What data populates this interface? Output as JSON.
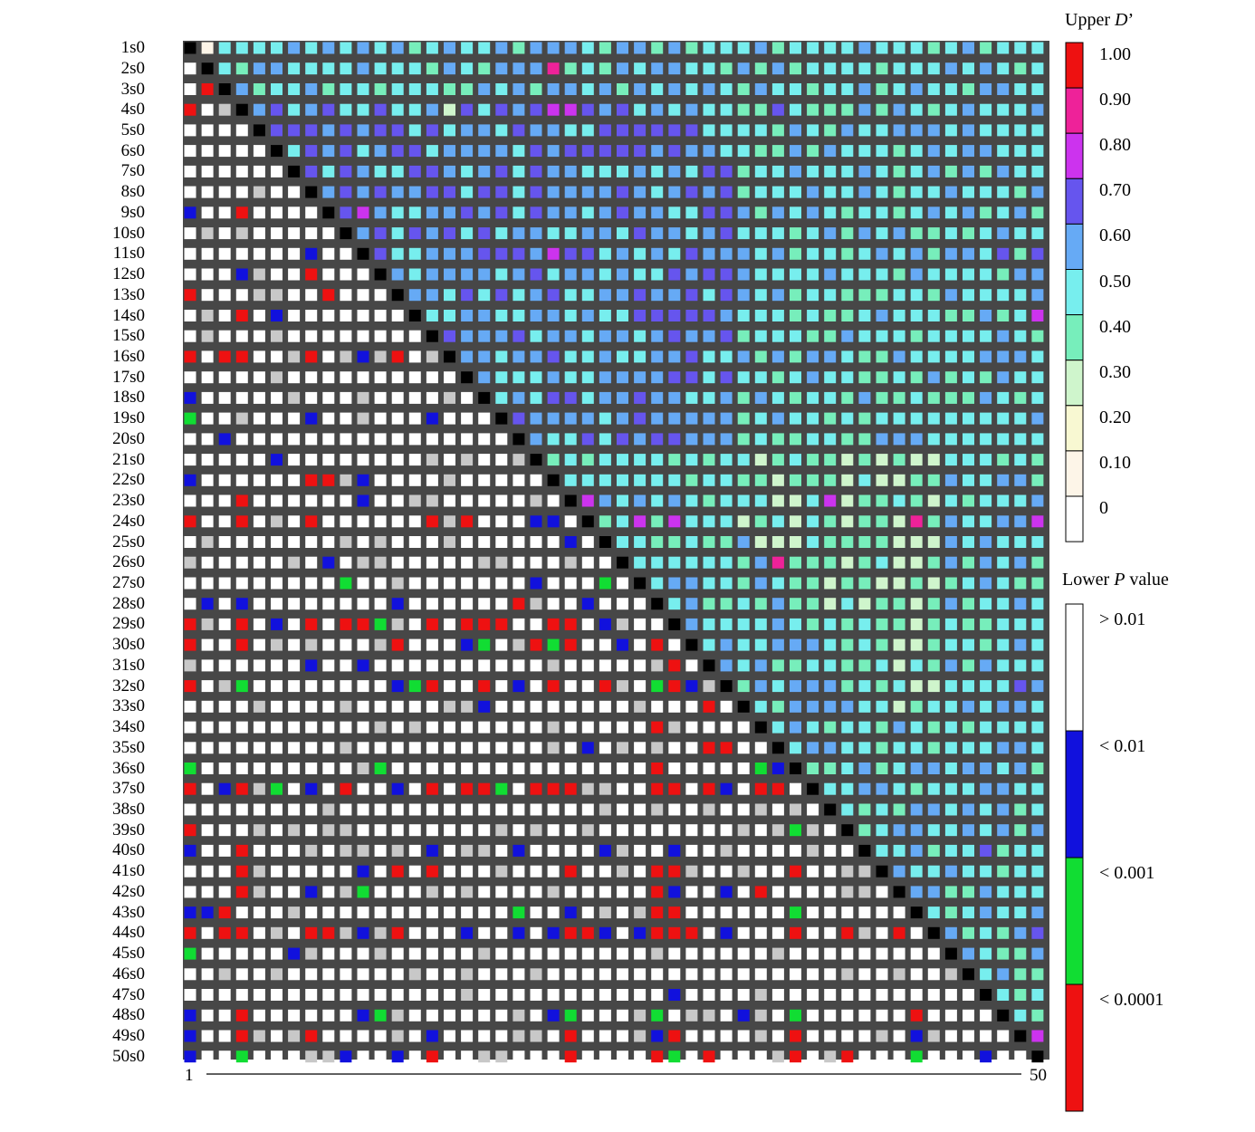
{
  "chart_data": {
    "type": "heatmap",
    "description_matrix": "Pairwise linkage disequilibrium matrix for 50 sites. Upper triangle colored by D' bins; lower triangle colored by P-value bins.",
    "row_labels": [
      "1s0",
      "2s0",
      "3s0",
      "4s0",
      "5s0",
      "6s0",
      "7s0",
      "8s0",
      "9s0",
      "10s0",
      "11s0",
      "12s0",
      "13s0",
      "14s0",
      "15s0",
      "16s0",
      "17s0",
      "18s0",
      "19s0",
      "20s0",
      "21s0",
      "22s0",
      "23s0",
      "24s0",
      "25s0",
      "26s0",
      "27s0",
      "28s0",
      "29s0",
      "30s0",
      "31s0",
      "32s0",
      "33s0",
      "34s0",
      "35s0",
      "36s0",
      "37s0",
      "38s0",
      "39s0",
      "40s0",
      "41s0",
      "42s0",
      "43s0",
      "44s0",
      "45s0",
      "46s0",
      "47s0",
      "48s0",
      "49s0",
      "50s0"
    ],
    "x_axis": {
      "start_label": "1",
      "end_label": "50"
    },
    "upper_legend": {
      "title_prefix": "Upper ",
      "title_italic": "D",
      "title_suffix": "’",
      "ticks": [
        "1.00",
        "0.90",
        "0.80",
        "0.70",
        "0.60",
        "0.50",
        "0.40",
        "0.30",
        "0.20",
        "0.10",
        "0"
      ],
      "colors": [
        "#ee1111",
        "#ee2299",
        "#cc33ee",
        "#6655ee",
        "#66aaf5",
        "#77eeee",
        "#77eebb",
        "#cff5cc",
        "#f8f8d2",
        "#fdf5e8",
        "#ffffff"
      ]
    },
    "lower_legend": {
      "title_prefix": "Lower ",
      "title_italic": "P",
      "title_suffix": " value",
      "ticks": [
        "> 0.01",
        "< 0.01",
        "< 0.001",
        "< 0.0001"
      ],
      "colors": [
        "#ffffff",
        "#1111dd",
        "#11dd33",
        "#ee1111"
      ]
    },
    "diagonal_color": "#000000",
    "grid_background": "#474747",
    "lower_special": [
      [
        "3s0",
        2,
        "r"
      ],
      [
        "4s0",
        1,
        "r"
      ],
      [
        "9s0",
        1,
        "b"
      ],
      [
        "9s0",
        4,
        "r"
      ],
      [
        "11s0",
        8,
        "b"
      ],
      [
        "12s0",
        4,
        "b"
      ],
      [
        "12s0",
        8,
        "r"
      ],
      [
        "13s0",
        1,
        "r"
      ],
      [
        "13s0",
        9,
        "r"
      ],
      [
        "14s0",
        4,
        "r"
      ],
      [
        "14s0",
        6,
        "b"
      ],
      [
        "16s0",
        1,
        "r"
      ],
      [
        "16s0",
        3,
        "r"
      ],
      [
        "16s0",
        4,
        "r"
      ],
      [
        "16s0",
        8,
        "r"
      ],
      [
        "16s0",
        11,
        "b"
      ],
      [
        "16s0",
        13,
        "r"
      ],
      [
        "18s0",
        1,
        "b"
      ],
      [
        "19s0",
        1,
        "g"
      ],
      [
        "19s0",
        8,
        "b"
      ],
      [
        "19s0",
        15,
        "b"
      ],
      [
        "20s0",
        3,
        "b"
      ],
      [
        "21s0",
        6,
        "b"
      ],
      [
        "22s0",
        1,
        "b"
      ],
      [
        "22s0",
        8,
        "r"
      ],
      [
        "22s0",
        9,
        "r"
      ],
      [
        "22s0",
        11,
        "b"
      ],
      [
        "23s0",
        4,
        "r"
      ],
      [
        "23s0",
        11,
        "b"
      ],
      [
        "24s0",
        1,
        "r"
      ],
      [
        "24s0",
        4,
        "r"
      ],
      [
        "24s0",
        8,
        "r"
      ],
      [
        "24s0",
        15,
        "r"
      ],
      [
        "24s0",
        17,
        "r"
      ],
      [
        "24s0",
        21,
        "b"
      ],
      [
        "24s0",
        22,
        "b"
      ],
      [
        "25s0",
        23,
        "b"
      ],
      [
        "26s0",
        9,
        "b"
      ],
      [
        "27s0",
        10,
        "g"
      ],
      [
        "27s0",
        21,
        "b"
      ],
      [
        "27s0",
        25,
        "g"
      ],
      [
        "28s0",
        2,
        "b"
      ],
      [
        "28s0",
        4,
        "b"
      ],
      [
        "28s0",
        13,
        "b"
      ],
      [
        "28s0",
        20,
        "r"
      ],
      [
        "28s0",
        24,
        "b"
      ],
      [
        "29s0",
        1,
        "r"
      ],
      [
        "29s0",
        4,
        "r"
      ],
      [
        "29s0",
        6,
        "b"
      ],
      [
        "29s0",
        8,
        "r"
      ],
      [
        "29s0",
        10,
        "r"
      ],
      [
        "29s0",
        11,
        "r"
      ],
      [
        "29s0",
        12,
        "g"
      ],
      [
        "29s0",
        15,
        "r"
      ],
      [
        "29s0",
        17,
        "r"
      ],
      [
        "29s0",
        18,
        "r"
      ],
      [
        "29s0",
        19,
        "r"
      ],
      [
        "29s0",
        22,
        "r"
      ],
      [
        "29s0",
        23,
        "r"
      ],
      [
        "29s0",
        25,
        "b"
      ],
      [
        "30s0",
        1,
        "r"
      ],
      [
        "30s0",
        4,
        "r"
      ],
      [
        "30s0",
        13,
        "r"
      ],
      [
        "30s0",
        17,
        "b"
      ],
      [
        "30s0",
        18,
        "g"
      ],
      [
        "30s0",
        21,
        "r"
      ],
      [
        "30s0",
        22,
        "g"
      ],
      [
        "30s0",
        23,
        "r"
      ],
      [
        "30s0",
        26,
        "b"
      ],
      [
        "30s0",
        28,
        "r"
      ],
      [
        "31s0",
        8,
        "b"
      ],
      [
        "31s0",
        11,
        "b"
      ],
      [
        "31s0",
        29,
        "r"
      ],
      [
        "32s0",
        1,
        "r"
      ],
      [
        "32s0",
        4,
        "g"
      ],
      [
        "32s0",
        13,
        "b"
      ],
      [
        "32s0",
        14,
        "g"
      ],
      [
        "32s0",
        15,
        "r"
      ],
      [
        "32s0",
        18,
        "r"
      ],
      [
        "32s0",
        20,
        "b"
      ],
      [
        "32s0",
        22,
        "r"
      ],
      [
        "32s0",
        25,
        "r"
      ],
      [
        "32s0",
        28,
        "g"
      ],
      [
        "32s0",
        29,
        "r"
      ],
      [
        "32s0",
        30,
        "b"
      ],
      [
        "33s0",
        18,
        "b"
      ],
      [
        "33s0",
        31,
        "r"
      ],
      [
        "34s0",
        28,
        "r"
      ],
      [
        "35s0",
        24,
        "b"
      ],
      [
        "35s0",
        31,
        "r"
      ],
      [
        "35s0",
        32,
        "r"
      ],
      [
        "36s0",
        1,
        "g"
      ],
      [
        "36s0",
        12,
        "g"
      ],
      [
        "36s0",
        28,
        "r"
      ],
      [
        "36s0",
        34,
        "g"
      ],
      [
        "36s0",
        35,
        "b"
      ],
      [
        "37s0",
        1,
        "r"
      ],
      [
        "37s0",
        3,
        "b"
      ],
      [
        "37s0",
        4,
        "r"
      ],
      [
        "37s0",
        6,
        "g"
      ],
      [
        "37s0",
        8,
        "b"
      ],
      [
        "37s0",
        10,
        "r"
      ],
      [
        "37s0",
        13,
        "b"
      ],
      [
        "37s0",
        15,
        "r"
      ],
      [
        "37s0",
        17,
        "r"
      ],
      [
        "37s0",
        18,
        "r"
      ],
      [
        "37s0",
        19,
        "g"
      ],
      [
        "37s0",
        21,
        "r"
      ],
      [
        "37s0",
        22,
        "r"
      ],
      [
        "37s0",
        23,
        "r"
      ],
      [
        "37s0",
        28,
        "r"
      ],
      [
        "37s0",
        29,
        "r"
      ],
      [
        "37s0",
        31,
        "r"
      ],
      [
        "37s0",
        32,
        "b"
      ],
      [
        "37s0",
        34,
        "r"
      ],
      [
        "37s0",
        35,
        "r"
      ],
      [
        "39s0",
        1,
        "r"
      ],
      [
        "39s0",
        36,
        "g"
      ],
      [
        "40s0",
        1,
        "b"
      ],
      [
        "40s0",
        4,
        "r"
      ],
      [
        "40s0",
        15,
        "b"
      ],
      [
        "40s0",
        20,
        "b"
      ],
      [
        "40s0",
        25,
        "b"
      ],
      [
        "40s0",
        29,
        "b"
      ],
      [
        "41s0",
        4,
        "r"
      ],
      [
        "41s0",
        11,
        "b"
      ],
      [
        "41s0",
        13,
        "r"
      ],
      [
        "41s0",
        15,
        "r"
      ],
      [
        "41s0",
        23,
        "r"
      ],
      [
        "41s0",
        28,
        "r"
      ],
      [
        "41s0",
        29,
        "r"
      ],
      [
        "41s0",
        36,
        "r"
      ],
      [
        "42s0",
        4,
        "r"
      ],
      [
        "42s0",
        8,
        "b"
      ],
      [
        "42s0",
        11,
        "g"
      ],
      [
        "42s0",
        28,
        "r"
      ],
      [
        "42s0",
        29,
        "b"
      ],
      [
        "42s0",
        32,
        "b"
      ],
      [
        "42s0",
        34,
        "r"
      ],
      [
        "43s0",
        1,
        "b"
      ],
      [
        "43s0",
        2,
        "b"
      ],
      [
        "43s0",
        3,
        "r"
      ],
      [
        "43s0",
        20,
        "g"
      ],
      [
        "43s0",
        23,
        "b"
      ],
      [
        "43s0",
        28,
        "r"
      ],
      [
        "43s0",
        29,
        "r"
      ],
      [
        "43s0",
        36,
        "g"
      ],
      [
        "44s0",
        1,
        "r"
      ],
      [
        "44s0",
        3,
        "r"
      ],
      [
        "44s0",
        4,
        "r"
      ],
      [
        "44s0",
        8,
        "r"
      ],
      [
        "44s0",
        9,
        "r"
      ],
      [
        "44s0",
        11,
        "b"
      ],
      [
        "44s0",
        13,
        "r"
      ],
      [
        "44s0",
        17,
        "b"
      ],
      [
        "44s0",
        20,
        "b"
      ],
      [
        "44s0",
        22,
        "b"
      ],
      [
        "44s0",
        23,
        "r"
      ],
      [
        "44s0",
        24,
        "r"
      ],
      [
        "44s0",
        25,
        "b"
      ],
      [
        "44s0",
        27,
        "b"
      ],
      [
        "44s0",
        28,
        "r"
      ],
      [
        "44s0",
        29,
        "r"
      ],
      [
        "44s0",
        30,
        "r"
      ],
      [
        "44s0",
        32,
        "b"
      ],
      [
        "44s0",
        36,
        "r"
      ],
      [
        "44s0",
        39,
        "r"
      ],
      [
        "44s0",
        42,
        "r"
      ],
      [
        "45s0",
        1,
        "g"
      ],
      [
        "45s0",
        7,
        "b"
      ],
      [
        "47s0",
        29,
        "b"
      ],
      [
        "48s0",
        1,
        "b"
      ],
      [
        "48s0",
        4,
        "r"
      ],
      [
        "48s0",
        11,
        "b"
      ],
      [
        "48s0",
        12,
        "g"
      ],
      [
        "48s0",
        22,
        "b"
      ],
      [
        "48s0",
        23,
        "g"
      ],
      [
        "48s0",
        28,
        "g"
      ],
      [
        "48s0",
        33,
        "b"
      ],
      [
        "48s0",
        36,
        "g"
      ],
      [
        "48s0",
        43,
        "r"
      ],
      [
        "49s0",
        1,
        "b"
      ],
      [
        "49s0",
        4,
        "r"
      ],
      [
        "49s0",
        8,
        "r"
      ],
      [
        "49s0",
        15,
        "b"
      ],
      [
        "49s0",
        23,
        "r"
      ],
      [
        "49s0",
        28,
        "b"
      ],
      [
        "49s0",
        29,
        "r"
      ],
      [
        "49s0",
        36,
        "r"
      ],
      [
        "49s0",
        43,
        "b"
      ],
      [
        "50s0",
        1,
        "b"
      ],
      [
        "50s0",
        4,
        "g"
      ],
      [
        "50s0",
        10,
        "b"
      ],
      [
        "50s0",
        13,
        "b"
      ],
      [
        "50s0",
        15,
        "r"
      ],
      [
        "50s0",
        23,
        "r"
      ],
      [
        "50s0",
        28,
        "r"
      ],
      [
        "50s0",
        29,
        "g"
      ],
      [
        "50s0",
        31,
        "r"
      ],
      [
        "50s0",
        36,
        "r"
      ],
      [
        "50s0",
        39,
        "r"
      ],
      [
        "50s0",
        43,
        "g"
      ],
      [
        "50s0",
        47,
        "b"
      ]
    ],
    "upper_special": [
      [
        "1s0",
        2,
        "0.10"
      ],
      [
        "2s0",
        22,
        "0.90"
      ],
      [
        "4s0",
        16,
        "0.30"
      ],
      [
        "4s0",
        22,
        "0.80"
      ],
      [
        "4s0",
        23,
        "0.80"
      ],
      [
        "4s0",
        35,
        "0.70"
      ],
      [
        "4s0",
        50,
        "0.60"
      ],
      [
        "9s0",
        11,
        "0.80"
      ],
      [
        "11s0",
        22,
        "0.80"
      ],
      [
        "11s0",
        48,
        "0.70"
      ],
      [
        "11s0",
        50,
        "0.70"
      ],
      [
        "14s0",
        50,
        "0.80"
      ],
      [
        "23s0",
        24,
        "0.80"
      ],
      [
        "23s0",
        38,
        "0.80"
      ],
      [
        "24s0",
        27,
        "0.80"
      ],
      [
        "24s0",
        29,
        "0.80"
      ],
      [
        "24s0",
        43,
        "0.90"
      ],
      [
        "24s0",
        50,
        "0.80"
      ],
      [
        "26s0",
        35,
        "0.90"
      ],
      [
        "32s0",
        49,
        "0.70"
      ],
      [
        "40s0",
        47,
        "0.70"
      ],
      [
        "44s0",
        50,
        "0.70"
      ],
      [
        "49s0",
        50,
        "0.80"
      ]
    ]
  }
}
